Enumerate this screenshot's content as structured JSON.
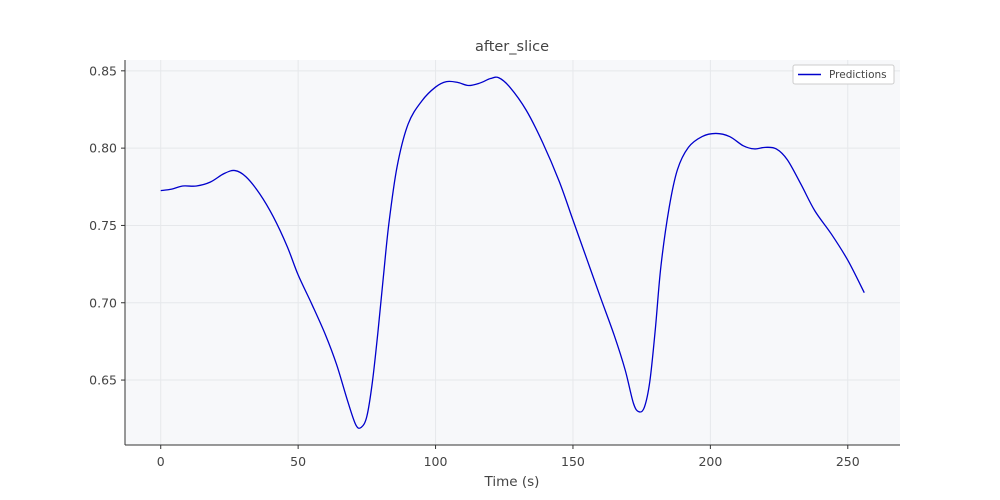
{
  "chart_data": {
    "type": "line",
    "title": "after_slice",
    "xlabel": "Time (s)",
    "ylabel": "",
    "xlim": [
      -13,
      269
    ],
    "ylim": [
      0.608,
      0.857
    ],
    "xticks": [
      0,
      50,
      100,
      150,
      200,
      250
    ],
    "xtick_labels": [
      "0",
      "50",
      "100",
      "150",
      "200",
      "250"
    ],
    "yticks": [
      0.65,
      0.7,
      0.75,
      0.8,
      0.85
    ],
    "ytick_labels": [
      "0.65",
      "0.70",
      "0.75",
      "0.80",
      "0.85"
    ],
    "grid": true,
    "legend": "top-right",
    "series": [
      {
        "name": "Predictions",
        "color": "#0000cc",
        "points": [
          [
            0,
            0.7725
          ],
          [
            4,
            0.7735
          ],
          [
            8,
            0.7755
          ],
          [
            13,
            0.7755
          ],
          [
            18,
            0.778
          ],
          [
            23,
            0.7835
          ],
          [
            27,
            0.7855
          ],
          [
            31,
            0.7815
          ],
          [
            36,
            0.7705
          ],
          [
            41,
            0.7555
          ],
          [
            46,
            0.7365
          ],
          [
            50,
            0.718
          ],
          [
            55,
            0.699
          ],
          [
            60,
            0.679
          ],
          [
            64,
            0.66
          ],
          [
            68,
            0.6365
          ],
          [
            71,
            0.621
          ],
          [
            73,
            0.6195
          ],
          [
            75,
            0.6265
          ],
          [
            77,
            0.6485
          ],
          [
            79,
            0.6805
          ],
          [
            81,
            0.7165
          ],
          [
            83,
            0.751
          ],
          [
            86,
            0.788
          ],
          [
            90,
            0.8155
          ],
          [
            95,
            0.8305
          ],
          [
            100,
            0.8395
          ],
          [
            104,
            0.843
          ],
          [
            108,
            0.8425
          ],
          [
            112,
            0.8405
          ],
          [
            116,
            0.842
          ],
          [
            120,
            0.845
          ],
          [
            123,
            0.8455
          ],
          [
            127,
            0.8395
          ],
          [
            133,
            0.8245
          ],
          [
            139,
            0.8035
          ],
          [
            145,
            0.7785
          ],
          [
            150,
            0.7535
          ],
          [
            155,
            0.7285
          ],
          [
            160,
            0.7035
          ],
          [
            165,
            0.679
          ],
          [
            169,
            0.6565
          ],
          [
            172,
            0.635
          ],
          [
            174,
            0.6295
          ],
          [
            176,
            0.6325
          ],
          [
            178,
            0.6495
          ],
          [
            180,
            0.6835
          ],
          [
            182,
            0.7235
          ],
          [
            185,
            0.7615
          ],
          [
            188,
            0.786
          ],
          [
            192,
            0.8005
          ],
          [
            197,
            0.8075
          ],
          [
            202,
            0.8095
          ],
          [
            207,
            0.8075
          ],
          [
            212,
            0.8015
          ],
          [
            216,
            0.7995
          ],
          [
            220,
            0.8005
          ],
          [
            224,
            0.7995
          ],
          [
            228,
            0.7925
          ],
          [
            233,
            0.7765
          ],
          [
            238,
            0.7595
          ],
          [
            244,
            0.7445
          ],
          [
            250,
            0.7275
          ],
          [
            256,
            0.7065
          ]
        ]
      }
    ]
  }
}
